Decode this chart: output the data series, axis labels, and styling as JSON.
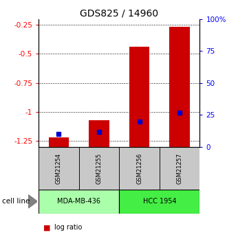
{
  "title": "GDS825 / 14960",
  "samples": [
    "GSM21254",
    "GSM21255",
    "GSM21256",
    "GSM21257"
  ],
  "log_ratio": [
    -1.22,
    -1.07,
    -0.44,
    -0.27
  ],
  "percentile_rank": [
    10,
    12,
    20,
    27
  ],
  "ylim_left": [
    -1.3,
    -0.2
  ],
  "ylim_right": [
    0,
    100
  ],
  "yticks_left": [
    -1.25,
    -1.0,
    -0.75,
    -0.5,
    -0.25
  ],
  "yticks_right": [
    0,
    25,
    50,
    75,
    100
  ],
  "ytick_labels_left": [
    "-1.25",
    "-1",
    "-0.75",
    "-0.5",
    "-0.25"
  ],
  "ytick_labels_right": [
    "0",
    "25",
    "50",
    "75",
    "100%"
  ],
  "groups": [
    {
      "label": "MDA-MB-436",
      "samples": [
        0,
        1
      ],
      "color": "#aaffaa"
    },
    {
      "label": "HCC 1954",
      "samples": [
        2,
        3
      ],
      "color": "#44ee44"
    }
  ],
  "group_label": "cell line",
  "bar_color_red": "#cc0000",
  "bar_color_blue": "#0000cc",
  "bar_width": 0.5,
  "background_color": "#ffffff",
  "plot_bg_color": "#ffffff",
  "sample_box_color": "#c8c8c8",
  "title_fontsize": 10,
  "tick_fontsize": 7.5,
  "legend_fontsize": 7.5
}
